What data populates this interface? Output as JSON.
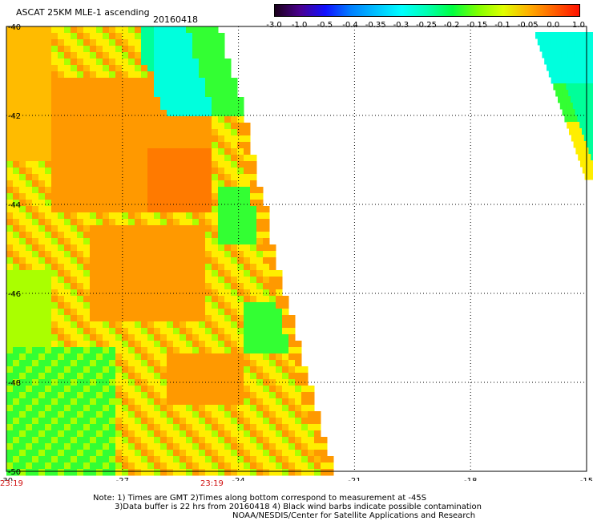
{
  "header": {
    "title": "ASCAT 25KM MLE-1 ascending",
    "date": "20160418"
  },
  "colorbar": {
    "labels": [
      "-3.0",
      "-1.0",
      "-0.5",
      "-0.4",
      "-0.35",
      "-0.3",
      "-0.25",
      "-0.2",
      "-0.15",
      "-0.1",
      "-0.05",
      "0.0",
      "1.0"
    ],
    "colors": [
      "#1a001a",
      "#4a0090",
      "#1010ff",
      "#0080ff",
      "#00c0ff",
      "#00ffff",
      "#00ffb0",
      "#00ff40",
      "#80ff00",
      "#e0ff00",
      "#ffb000",
      "#ff6000",
      "#ff1000"
    ]
  },
  "map": {
    "lon_ticks": [
      "-30",
      "-27",
      "-24",
      "-21",
      "-18",
      "-15"
    ],
    "lat_ticks": [
      "-40",
      "-42",
      "-44",
      "-46",
      "-48",
      "-50"
    ],
    "time_labels": [
      "23:19",
      "23:19"
    ]
  },
  "notes": {
    "line1": "Note: 1) Times are GMT 2)Times along bottom correspond to measurement at -45S",
    "line2": "3)Data buffer is 22 hrs from 20160418 4) Black wind barbs indicate possible contamination",
    "line3": "NOAA/NESDIS/Center for Satellite Applications and Research"
  },
  "palette": {
    "orange": "#ff9900",
    "amber": "#ffbb00",
    "yellow": "#ffee00",
    "lime": "#aaff00",
    "green": "#33ff33",
    "teal": "#00ff99",
    "cyan": "#00ffdd"
  }
}
